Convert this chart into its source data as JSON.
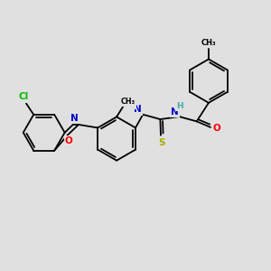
{
  "background_color": "#e0e0e0",
  "bond_color": "#000000",
  "colors": {
    "N": "#0000cc",
    "O": "#ff0000",
    "S": "#aaaa00",
    "Cl": "#00bb00",
    "H": "#44aaaa",
    "C": "#000000"
  },
  "lw": 1.3
}
